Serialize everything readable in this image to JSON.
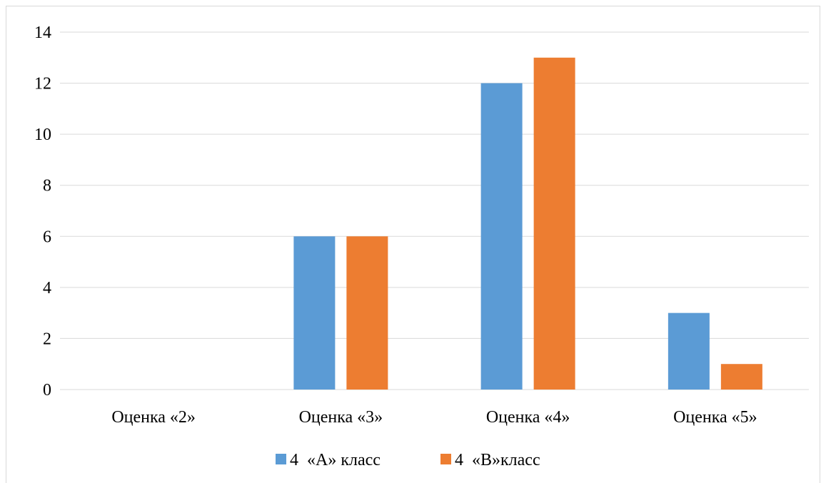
{
  "chart_data": {
    "type": "bar",
    "categories": [
      "Оценка «2»",
      "Оценка «3»",
      "Оценка «4»",
      "Оценка «5»"
    ],
    "series": [
      {
        "name": "4  «А» класс",
        "values": [
          0,
          6,
          12,
          3
        ],
        "color": "#5b9bd5"
      },
      {
        "name": "4  «В»класс",
        "values": [
          0,
          6,
          13,
          1
        ],
        "color": "#ed7d31"
      }
    ],
    "ylim": [
      0,
      14
    ],
    "yticks": [
      "0",
      "2",
      "4",
      "6",
      "8",
      "10",
      "12",
      "14"
    ],
    "grid": true,
    "legend": "bottom"
  }
}
